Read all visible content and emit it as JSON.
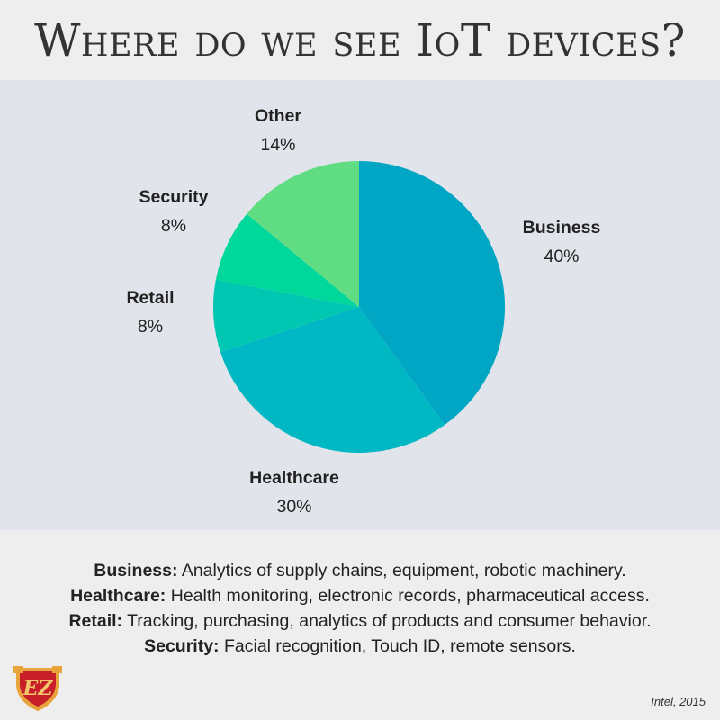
{
  "title": "Where do we see IoT devices?",
  "chart_data": {
    "type": "pie",
    "start_angle_deg": 0,
    "direction": "clockwise",
    "slices": [
      {
        "label": "Business",
        "value": 40,
        "value_label": "40%",
        "color": "#00a6c3"
      },
      {
        "label": "Healthcare",
        "value": 30,
        "value_label": "30%",
        "color": "#00b8c3"
      },
      {
        "label": "Retail",
        "value": 8,
        "value_label": "8%",
        "color": "#00c7b1"
      },
      {
        "label": "Security",
        "value": 8,
        "value_label": "8%",
        "color": "#00d79a"
      },
      {
        "label": "Other",
        "value": 14,
        "value_label": "14%",
        "color": "#60dd82"
      }
    ]
  },
  "legend": [
    {
      "term": "Business:",
      "text": " Analytics of supply chains, equipment, robotic machinery."
    },
    {
      "term": "Healthcare:",
      "text": " Health monitoring, electronic records, pharmaceutical access."
    },
    {
      "term": "Retail:",
      "text": " Tracking, purchasing, analytics of products and consumer behavior."
    },
    {
      "term": "Security:",
      "text": " Facial recognition, Touch ID, remote sensors."
    }
  ],
  "source": "Intel, 2015",
  "logo": {
    "letters": "EZ",
    "icon": "shield-logo-icon",
    "colors": {
      "shield": "#c8202a",
      "trim": "#e8a33a"
    }
  }
}
